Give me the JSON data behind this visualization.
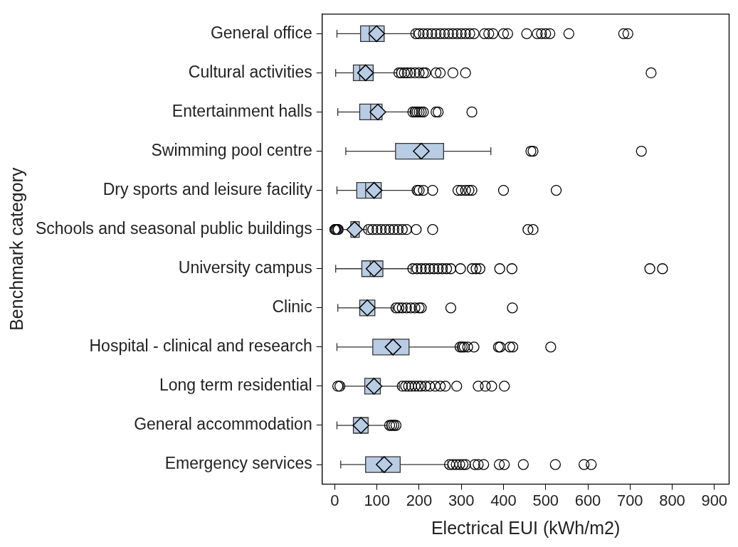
{
  "chart_data": {
    "type": "box",
    "orientation": "horizontal",
    "xlabel": "Electrical EUI (kWh/m2)",
    "ylabel": "Benchmark category",
    "color": "#b8cce4",
    "marker": "diamond",
    "grid": false,
    "legend": false,
    "xlim": [
      -30,
      935
    ],
    "xticks": [
      0,
      100,
      200,
      300,
      400,
      500,
      600,
      700,
      800,
      900
    ],
    "categories": [
      "General office",
      "Cultural activities",
      "Entertainment halls",
      "Swimming pool centre",
      "Dry sports and leisure facility",
      "Schools and seasonal public buildings",
      "University campus",
      "Clinic",
      "Hospital - clinical and research",
      "Long term residential",
      "General accommodation",
      "Emergency services"
    ],
    "boxes": [
      {
        "low": 5,
        "q1": 61,
        "median": 82,
        "q3": 117,
        "high": 187,
        "mean": 99,
        "outliers": [
          192,
          200,
          210,
          220,
          230,
          240,
          250,
          260,
          270,
          280,
          290,
          300,
          310,
          320,
          330,
          355,
          365,
          375,
          400,
          410,
          455,
          480,
          490,
          500,
          510,
          555,
          685,
          695
        ]
      },
      {
        "low": 2,
        "q1": 44,
        "median": 59,
        "q3": 91,
        "high": 147,
        "mean": 73,
        "outliers": [
          152,
          158,
          165,
          172,
          180,
          190,
          200,
          210,
          215,
          240,
          250,
          280,
          310,
          750
        ]
      },
      {
        "low": 7,
        "q1": 59,
        "median": 85,
        "q3": 112,
        "high": 181,
        "mean": 102,
        "outliers": [
          185,
          190,
          195,
          200,
          205,
          210,
          240,
          245,
          325
        ]
      },
      {
        "low": 26,
        "q1": 144,
        "median": 201,
        "q3": 258,
        "high": 370,
        "mean": 205,
        "outliers": [
          465,
          470,
          727
        ]
      },
      {
        "low": 5,
        "q1": 52,
        "median": 73,
        "q3": 110,
        "high": 187,
        "mean": 93,
        "outliers": [
          195,
          200,
          210,
          232,
          292,
          300,
          310,
          318,
          325,
          400,
          525
        ]
      },
      {
        "low": 17,
        "q1": 38,
        "median": 48,
        "q3": 58,
        "high": 75,
        "mean": 47,
        "outliers": [
          0,
          2,
          5,
          8,
          80,
          90,
          100,
          110,
          120,
          130,
          140,
          150,
          160,
          170,
          193,
          232,
          458,
          470
        ]
      },
      {
        "low": 2,
        "q1": 64,
        "median": 84,
        "q3": 114,
        "high": 181,
        "mean": 93,
        "outliers": [
          185,
          195,
          205,
          215,
          225,
          235,
          245,
          255,
          265,
          275,
          298,
          326,
          335,
          344,
          391,
          420,
          747,
          777
        ]
      },
      {
        "low": 7,
        "q1": 59,
        "median": 76,
        "q3": 95,
        "high": 138,
        "mean": 77,
        "outliers": [
          145,
          152,
          160,
          170,
          180,
          190,
          200,
          205,
          275,
          421
        ]
      },
      {
        "low": 5,
        "q1": 90,
        "median": 133,
        "q3": 176,
        "high": 293,
        "mean": 138,
        "outliers": [
          297,
          302,
          307,
          315,
          330,
          388,
          392,
          415,
          422,
          512
        ]
      },
      {
        "low": 20,
        "q1": 71,
        "median": 90,
        "q3": 108,
        "high": 153,
        "mean": 93,
        "outliers": [
          7,
          12,
          160,
          168,
          175,
          182,
          190,
          198,
          205,
          215,
          225,
          238,
          250,
          262,
          289,
          340,
          357,
          372,
          402
        ]
      },
      {
        "low": 5,
        "q1": 44,
        "median": 62,
        "q3": 79,
        "high": 124,
        "mean": 62,
        "outliers": [
          130,
          135,
          140,
          145
        ]
      },
      {
        "low": 14,
        "q1": 73,
        "median": 111,
        "q3": 155,
        "high": 268,
        "mean": 117,
        "outliers": [
          272,
          280,
          288,
          296,
          304,
          310,
          332,
          340,
          353,
          390,
          402,
          447,
          523,
          591,
          608
        ]
      }
    ]
  }
}
